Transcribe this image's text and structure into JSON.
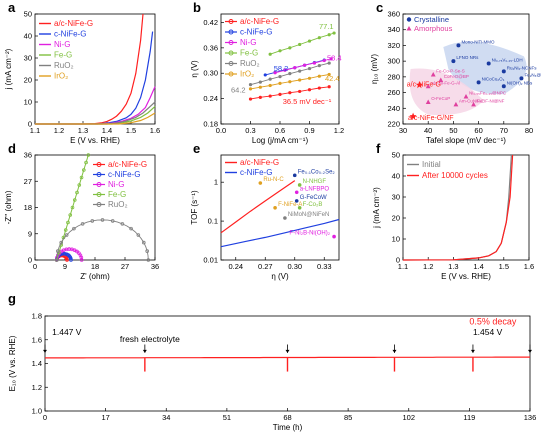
{
  "colors": {
    "red": "#ff2020",
    "blue": "#2040e0",
    "magenta": "#e020e0",
    "green": "#80c040",
    "gray": "#808080",
    "orange": "#e0a020",
    "pink": "#e0409f",
    "navy": "#1a3aa0",
    "bluefill": "#c8d6f0",
    "axis": "#000000"
  },
  "panel_letters": [
    "a",
    "b",
    "c",
    "d",
    "e",
    "f",
    "g"
  ],
  "chart_data": [
    {
      "panel": "a",
      "type": "line",
      "xlabel": "E (V vs. RHE)",
      "ylabel": "j (mA cm⁻²)",
      "xlim": [
        1.1,
        1.6
      ],
      "ylim": [
        0,
        50
      ],
      "xticks": [
        "1.1",
        "1.2",
        "1.3",
        "1.4",
        "1.5",
        "1.6"
      ],
      "yticks": [
        "0",
        "10",
        "20",
        "30",
        "40",
        "50"
      ],
      "legend": "top-left",
      "series": [
        {
          "name": "a/c-NiFe-G",
          "color": "red",
          "x": [
            1.1,
            1.3,
            1.35,
            1.38,
            1.4,
            1.42,
            1.44,
            1.46,
            1.48,
            1.5,
            1.52,
            1.54,
            1.55
          ],
          "y": [
            0,
            0,
            0.2,
            0.6,
            1.2,
            2.2,
            3.6,
            5.8,
            9,
            14,
            23,
            38,
            50
          ]
        },
        {
          "name": "c-NiFe-G",
          "color": "blue",
          "x": [
            1.1,
            1.36,
            1.4,
            1.44,
            1.48,
            1.5,
            1.52,
            1.54,
            1.56,
            1.58,
            1.59
          ],
          "y": [
            0,
            0,
            0.4,
            1.2,
            2.8,
            4.4,
            7.2,
            12,
            20,
            33,
            42
          ]
        },
        {
          "name": "Ni-G",
          "color": "magenta",
          "x": [
            1.1,
            1.38,
            1.42,
            1.46,
            1.5,
            1.53,
            1.56,
            1.58,
            1.6
          ],
          "y": [
            0,
            0,
            0.4,
            1.2,
            2.6,
            4.4,
            7.5,
            12,
            17
          ]
        },
        {
          "name": "Fe-G",
          "color": "green",
          "x": [
            1.1,
            1.42,
            1.46,
            1.5,
            1.54,
            1.57,
            1.6
          ],
          "y": [
            0,
            0,
            0.5,
            1.4,
            3,
            5,
            8
          ]
        },
        {
          "name": "RuO₂",
          "color": "gray",
          "x": [
            1.1,
            1.4,
            1.44,
            1.48,
            1.52,
            1.55,
            1.58,
            1.6
          ],
          "y": [
            0,
            0,
            0.5,
            1.4,
            3,
            5,
            8,
            10
          ]
        },
        {
          "name": "IrO₂",
          "color": "orange",
          "x": [
            1.1,
            1.45,
            1.5,
            1.54,
            1.57,
            1.6
          ],
          "y": [
            0,
            0,
            0.6,
            1.6,
            3,
            5
          ]
        }
      ]
    },
    {
      "panel": "b",
      "type": "line",
      "xlabel": "Log (j/mA cm⁻¹)",
      "ylabel": "η (V)",
      "xlim": [
        0.0,
        1.2
      ],
      "ylim": [
        0.18,
        0.44
      ],
      "xticks": [
        "0.0",
        "0.3",
        "0.6",
        "0.9",
        "1.2"
      ],
      "yticks": [
        "0.18",
        "0.24",
        "0.30",
        "0.36",
        "0.42"
      ],
      "legend": "top-left",
      "series": [
        {
          "name": "a/c-NiFe-G",
          "color": "red",
          "x": [
            0.3,
            0.4,
            0.5,
            0.6,
            0.7,
            0.8,
            0.9,
            1.0,
            1.1
          ],
          "y": [
            0.239,
            0.243,
            0.246,
            0.25,
            0.254,
            0.257,
            0.261,
            0.265,
            0.268
          ],
          "label": "36.5 mV dec⁻¹"
        },
        {
          "name": "c-NiFe-G",
          "color": "blue",
          "x": [
            0.45,
            0.55,
            0.65,
            0.75,
            0.85,
            0.95,
            1.05
          ],
          "y": [
            0.296,
            0.302,
            0.308,
            0.313,
            0.319,
            0.325,
            0.331
          ],
          "label": "58.2"
        },
        {
          "name": "Ni-G",
          "color": "magenta",
          "x": [
            0.55,
            0.65,
            0.75,
            0.85,
            0.95,
            1.05,
            1.12
          ],
          "y": [
            0.301,
            0.307,
            0.313,
            0.319,
            0.324,
            0.33,
            0.334
          ],
          "label": "58.4"
        },
        {
          "name": "Fe-G",
          "color": "green",
          "x": [
            0.5,
            0.6,
            0.7,
            0.8,
            0.9,
            1.0,
            1.1,
            1.15
          ],
          "y": [
            0.345,
            0.353,
            0.36,
            0.368,
            0.376,
            0.384,
            0.391,
            0.395
          ],
          "label": "77.1"
        },
        {
          "name": "RuO₂",
          "color": "gray",
          "x": [
            0.3,
            0.4,
            0.5,
            0.6,
            0.7,
            0.8,
            0.9,
            1.0,
            1.1
          ],
          "y": [
            0.273,
            0.279,
            0.286,
            0.292,
            0.299,
            0.305,
            0.311,
            0.318,
            0.324
          ],
          "label": "64.2"
        },
        {
          "name": "IrO₂",
          "color": "orange",
          "x": [
            0.3,
            0.4,
            0.5,
            0.6,
            0.7,
            0.8,
            0.9,
            1.0,
            1.1
          ],
          "y": [
            0.263,
            0.267,
            0.271,
            0.276,
            0.28,
            0.284,
            0.288,
            0.293,
            0.297
          ],
          "label": "42.4"
        }
      ]
    },
    {
      "panel": "c",
      "type": "scatter",
      "xlabel": "Tafel slope (mV dec⁻¹)",
      "ylabel": "η₁₀ (mV)",
      "xlim": [
        30,
        80
      ],
      "ylim": [
        220,
        360
      ],
      "xticks": [
        "30",
        "40",
        "50",
        "60",
        "70",
        "80"
      ],
      "yticks": [
        "220",
        "240",
        "260",
        "280",
        "300",
        "320",
        "340",
        "360"
      ],
      "legend": [
        {
          "name": "Crystalline",
          "color": "navy",
          "marker": "circle"
        },
        {
          "name": "Amorphous",
          "color": "pink",
          "marker": "triangle"
        }
      ],
      "points": [
        {
          "label": "Mono-NiTi-MMO",
          "x": 52,
          "y": 320,
          "color": "navy",
          "marker": "circle"
        },
        {
          "label": "LFNO NRs",
          "x": 50,
          "y": 300,
          "color": "navy",
          "marker": "circle"
        },
        {
          "label": "Ni₀.₇₅V₀.₂₅-LDH",
          "x": 64,
          "y": 297,
          "color": "navy",
          "marker": "circle"
        },
        {
          "label": "Ru₂Ni₂-NCNFs",
          "x": 70,
          "y": 287,
          "color": "navy",
          "marker": "circle"
        },
        {
          "label": "Fe₂N₆@NC",
          "x": 77,
          "y": 278,
          "color": "navy",
          "marker": "circle"
        },
        {
          "label": "NiCoCu₂O₄",
          "x": 60,
          "y": 273,
          "color": "navy",
          "marker": "circle"
        },
        {
          "label": "Ni(OH)₂ NBs",
          "x": 70,
          "y": 268,
          "color": "navy",
          "marker": "circle"
        },
        {
          "label": "Fe-Co-P-Se-S",
          "x": 42,
          "y": 283,
          "color": "pink",
          "marker": "triangle"
        },
        {
          "label": "CoFeO@BP",
          "x": 45,
          "y": 276,
          "color": "pink",
          "marker": "triangle"
        },
        {
          "label": "a/c-NiFe-G(this work)",
          "x": 36.5,
          "y": 270,
          "color": "red",
          "marker": "star"
        },
        {
          "label": "a/c-Ni-Fe-G-Al",
          "x": 40,
          "y": 268,
          "color": "pink",
          "marker": "triangle"
        },
        {
          "label": "O-FeCoP",
          "x": 40,
          "y": 248,
          "color": "pink",
          "marker": "triangle"
        },
        {
          "label": "Ni₀.₅₅Fe₀.₄₅@NPC",
          "x": 55,
          "y": 255,
          "color": "pink",
          "marker": "triangle"
        },
        {
          "label": "Am-CuNiFe",
          "x": 51,
          "y": 245,
          "color": "pink",
          "marker": "triangle"
        },
        {
          "label": "N-ZIF-Ni@NF",
          "x": 58,
          "y": 245,
          "color": "pink",
          "marker": "triangle"
        },
        {
          "label": "a/c-NiFe-G/NF",
          "x": 34,
          "y": 230,
          "color": "red",
          "marker": "star"
        }
      ],
      "annotations": [
        "a/c-NiFe-G",
        "a/c-NiFe-G/NF"
      ]
    },
    {
      "panel": "d",
      "type": "scatter",
      "xlabel": "Z' (ohm)",
      "ylabel": "-Z'' (ohm)",
      "xlim": [
        0,
        36
      ],
      "ylim": [
        0,
        36
      ],
      "xticks": [
        "0",
        "9",
        "18",
        "27",
        "36"
      ],
      "yticks": [
        "0",
        "9",
        "18",
        "27",
        "36"
      ],
      "legend": "top-right",
      "series": [
        {
          "name": "a/c-NiFe-G",
          "color": "red",
          "semicircle": [
            6.5,
            9.6
          ]
        },
        {
          "name": "c-NiFe-G",
          "color": "blue",
          "semicircle": [
            6.5,
            10.8
          ]
        },
        {
          "name": "Ni-G",
          "color": "magenta",
          "semicircle": [
            6.5,
            14.0
          ]
        },
        {
          "name": "Fe-G",
          "color": "green",
          "line": [
            [
              6.5,
              0
            ],
            [
              16,
              36
            ]
          ]
        },
        {
          "name": "RuO₂",
          "color": "gray",
          "semicircle": [
            6.5,
            34.0
          ]
        }
      ]
    },
    {
      "panel": "e",
      "type": "line",
      "xlabel": "η (V)",
      "ylabel": "TOF (s⁻¹)",
      "xlim": [
        0.225,
        0.345
      ],
      "ylim": [
        0.01,
        5
      ],
      "yscale": "log",
      "xticks": [
        "0.24",
        "0.27",
        "0.30",
        "0.33"
      ],
      "yticks": [
        "0.01",
        "0.1",
        "1"
      ],
      "legend": "top-left",
      "series": [
        {
          "name": "a/c-NiFe-G",
          "color": "red",
          "x": [
            0.225,
            0.24,
            0.255,
            0.27,
            0.285,
            0.3
          ],
          "y": [
            0.05,
            0.095,
            0.18,
            0.33,
            0.6,
            1.1
          ]
        },
        {
          "name": "c-NiFe-G",
          "color": "blue",
          "x": [
            0.225,
            0.25,
            0.27,
            0.29,
            0.31,
            0.33,
            0.345
          ],
          "y": [
            0.022,
            0.03,
            0.038,
            0.05,
            0.066,
            0.087,
            0.11
          ]
        }
      ],
      "points": [
        {
          "label": "Fe₀.₁Co₀.₂Se₂",
          "x": 0.3,
          "y": 1.5,
          "color": "navy"
        },
        {
          "label": "Ru-N-C",
          "x": 0.265,
          "y": 0.95,
          "color": "orange"
        },
        {
          "label": "N-NHGF",
          "x": 0.305,
          "y": 0.85,
          "color": "green"
        },
        {
          "label": "a-LNFBPO",
          "x": 0.302,
          "y": 0.55,
          "color": "magenta"
        },
        {
          "label": "G-FeCoW",
          "x": 0.302,
          "y": 0.33,
          "color": "navy"
        },
        {
          "label": "F-NiFe-A",
          "x": 0.28,
          "y": 0.22,
          "color": "orange"
        },
        {
          "label": "F-Co₂B",
          "x": 0.305,
          "y": 0.22,
          "color": "green"
        },
        {
          "label": "NiMoN@NiFeN",
          "x": 0.29,
          "y": 0.12,
          "color": "gray"
        },
        {
          "label": "F-Ni₂B-Ni(OH)₂",
          "x": 0.34,
          "y": 0.04,
          "color": "magenta"
        }
      ]
    },
    {
      "panel": "f",
      "type": "line",
      "xlabel": "E (V vs. RHE)",
      "ylabel": "j (mA cm⁻²)",
      "xlim": [
        1.1,
        1.6
      ],
      "ylim": [
        0,
        50
      ],
      "xticks": [
        "1.1",
        "1.2",
        "1.3",
        "1.4",
        "1.5",
        "1.6"
      ],
      "yticks": [
        "0",
        "10",
        "20",
        "30",
        "40",
        "50"
      ],
      "legend": "top-left",
      "series": [
        {
          "name": "Initial",
          "color": "gray",
          "x": [
            1.1,
            1.3,
            1.35,
            1.4,
            1.44,
            1.47,
            1.49,
            1.51,
            1.52,
            1.53
          ],
          "y": [
            0,
            0.1,
            0.5,
            1,
            2,
            4,
            8,
            18,
            30,
            50
          ]
        },
        {
          "name": "After 10000 cycles",
          "color": "red",
          "x": [
            1.1,
            1.3,
            1.35,
            1.4,
            1.44,
            1.47,
            1.49,
            1.51,
            1.525,
            1.535
          ],
          "y": [
            0,
            0.1,
            0.5,
            1,
            2,
            4,
            8,
            18,
            30,
            50
          ]
        }
      ]
    },
    {
      "panel": "g",
      "type": "line",
      "xlabel": "Time (h)",
      "ylabel": "E₁₀ (V vs. RHE)",
      "xlim": [
        0,
        136
      ],
      "ylim": [
        1.0,
        1.8
      ],
      "xticks": [
        "0",
        "17",
        "34",
        "51",
        "68",
        "85",
        "102",
        "119",
        "136"
      ],
      "yticks": [
        "1.0",
        "1.2",
        "1.4",
        "1.6",
        "1.8"
      ],
      "series": [
        {
          "name": "E10",
          "color": "red",
          "x": [
            0,
            136
          ],
          "y": [
            1.447,
            1.454
          ]
        }
      ],
      "dips": [
        28,
        68,
        98,
        120
      ],
      "annotations": [
        {
          "text": "1.447 V",
          "x": 2,
          "y": 1.64
        },
        {
          "text": "fresh electrolyte",
          "x": 21,
          "y": 1.58
        },
        {
          "text": "1.454 V",
          "x": 120,
          "y": 1.64
        },
        {
          "text": "0.5% decay",
          "x": 119,
          "y": 1.73
        }
      ],
      "arrows": [
        0,
        28,
        68,
        98,
        120,
        136
      ]
    }
  ],
  "texts": {
    "a_legend": [
      "a/c-NiFe-G",
      "c-NiFe-G",
      "Ni-G",
      "Fe-G",
      "RuO₂",
      "IrO₂"
    ],
    "b_legend": [
      "a/c-NiFe-G",
      "c-NiFe-G",
      "Ni-G",
      "Fe-G",
      "RuO₂",
      "IrO₂"
    ],
    "b_slopes": [
      "36.5 mV dec⁻¹",
      "58.2",
      "58.4",
      "77.1",
      "64.2",
      "42.4"
    ],
    "c_legend": [
      "Crystalline",
      "Amorphous"
    ],
    "d_legend": [
      "a/c-NiFe-G",
      "c-NiFe-G",
      "Ni-G",
      "Fe-G",
      "RuO₂"
    ],
    "e_legend": [
      "a/c-NiFe-G",
      "c-NiFe-G"
    ],
    "f_legend": [
      "Initial",
      "After 10000 cycles"
    ],
    "g_annotations": [
      "1.447 V",
      "fresh electrolyte",
      "1.454 V",
      "0.5% decay"
    ]
  }
}
